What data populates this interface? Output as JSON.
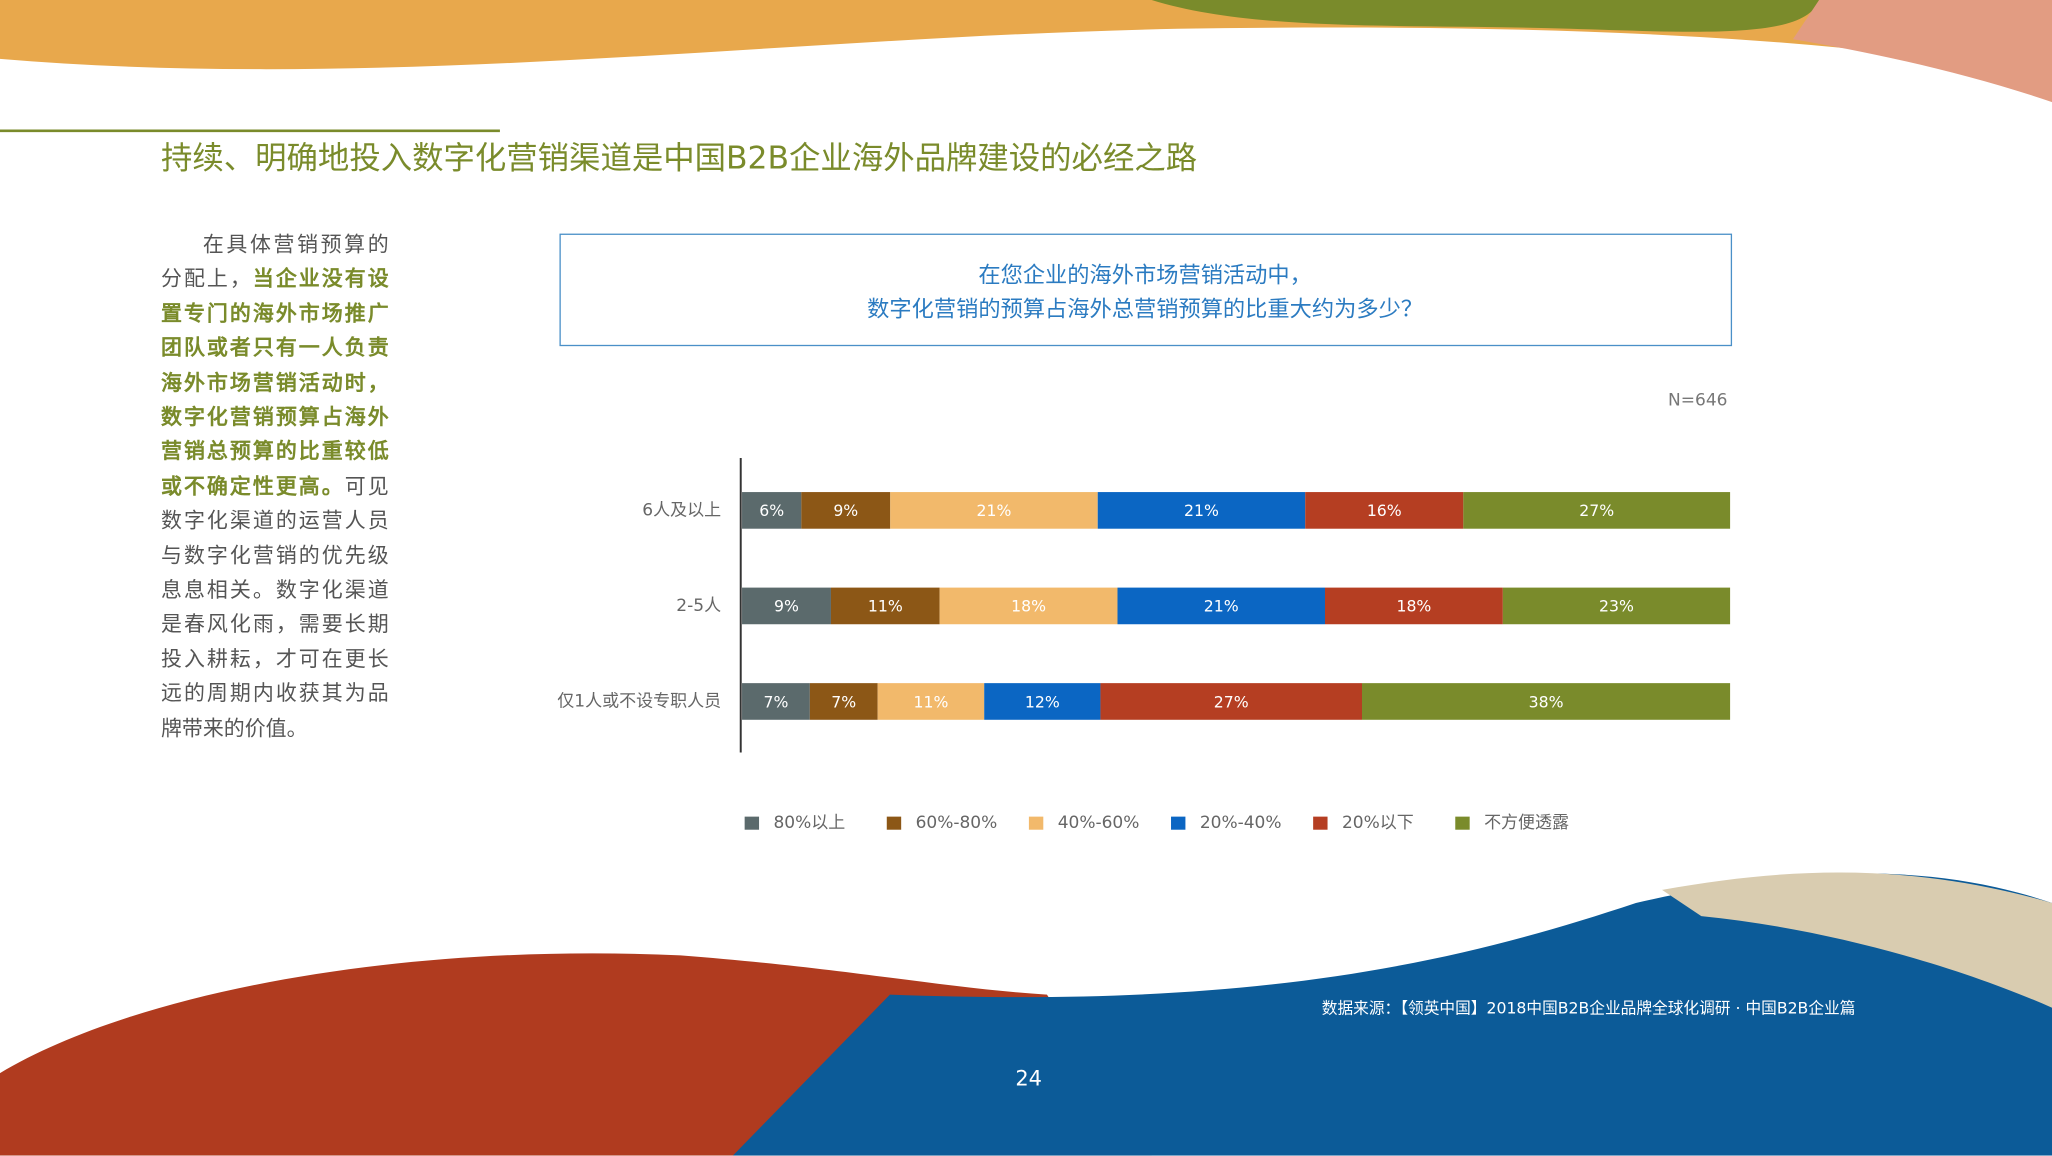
{
  "header": {
    "title": "持续、明确地投入数字化营销渠道是中国B2B企业海外品牌建设的必经之路"
  },
  "sidebar": {
    "paragraph": [
      {
        "text": "在具体营销预算的分配上，",
        "bold": false
      },
      {
        "text": "当企业没有设置专门的海外市场推广团队或者只有一人负责海外市场营销活动时，数字化营销预算占海外营销总预算的比重较低或不确定性更高。",
        "bold": true
      },
      {
        "text": "可见数字化渠道的运营人员与数字化营销的优先级息息相关。数字化渠道是春风化雨，需要长期投入耕耘，才可在更长远的周期内收获其为品牌带来的价值。",
        "bold": false
      }
    ]
  },
  "chart_data": {
    "type": "stacked-bar-horizontal",
    "title": [
      "在您企业的海外市场营销活动中，",
      "数字化营销的预算占海外总营销预算的比重大约为多少？"
    ],
    "note": "N=646",
    "categories": [
      "6人及以上",
      "2-5人",
      "仅1人或不设专职人员"
    ],
    "series": [
      {
        "name": "80%以上",
        "color": "#5b6a6c",
        "values": [
          6,
          9,
          7
        ],
        "value_labels": [
          "6%",
          "9%",
          "7%"
        ]
      },
      {
        "name": "60%-80%",
        "color": "#8c5716",
        "values": [
          9,
          11,
          7
        ],
        "value_labels": [
          "9%",
          "11%",
          "7%"
        ]
      },
      {
        "name": "40%-60%",
        "color": "#f2b96b",
        "values": [
          21,
          18,
          11
        ],
        "value_labels": [
          "21%",
          "18%",
          "11%"
        ]
      },
      {
        "name": "20%-40%",
        "color": "#0b66c3",
        "values": [
          21,
          21,
          12
        ],
        "value_labels": [
          "21%",
          "21%",
          "12%"
        ]
      },
      {
        "name": "20%以下",
        "color": "#b53e22",
        "values": [
          16,
          18,
          27
        ],
        "value_labels": [
          "16%",
          "18%",
          "27%"
        ]
      },
      {
        "name": "不方便透露",
        "color": "#7a8b2b",
        "values": [
          27,
          23,
          38
        ],
        "value_labels": [
          "27%",
          "23%",
          "38%"
        ]
      }
    ],
    "legend": "bottom"
  },
  "footer": {
    "source": "数据来源：【领英中国】2018中国B2B企业品牌全球化调研 · 中国B2B企业篇",
    "page": "24"
  }
}
